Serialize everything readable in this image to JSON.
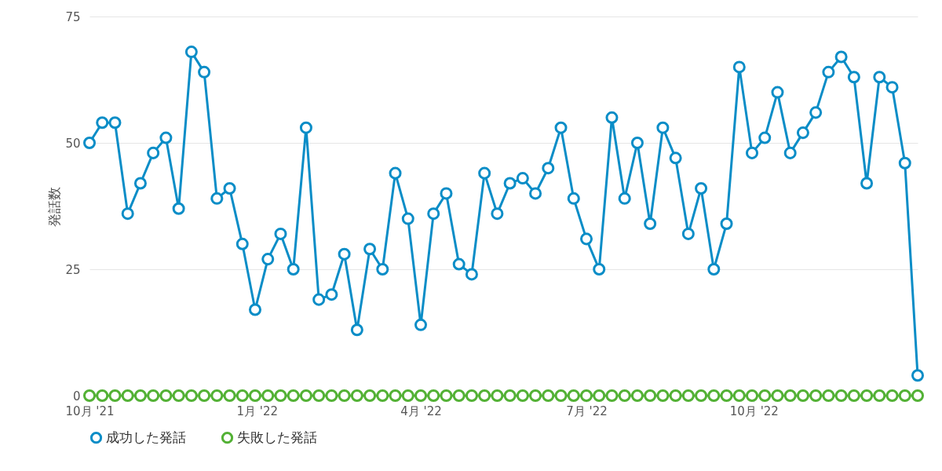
{
  "chart_data": {
    "type": "line",
    "ylabel": "発話数",
    "x": [
      "2021-10-01",
      "2021-10-08",
      "2021-10-15",
      "2021-10-22",
      "2021-10-29",
      "2021-11-05",
      "2021-11-12",
      "2021-11-19",
      "2021-11-26",
      "2021-12-03",
      "2021-12-10",
      "2021-12-17",
      "2021-12-24",
      "2021-12-31",
      "2022-01-07",
      "2022-01-14",
      "2022-01-21",
      "2022-01-28",
      "2022-02-04",
      "2022-02-11",
      "2022-02-18",
      "2022-02-25",
      "2022-03-04",
      "2022-03-11",
      "2022-03-18",
      "2022-03-25",
      "2022-04-01",
      "2022-04-08",
      "2022-04-15",
      "2022-04-22",
      "2022-04-29",
      "2022-05-06",
      "2022-05-13",
      "2022-05-20",
      "2022-05-27",
      "2022-06-03",
      "2022-06-10",
      "2022-06-17",
      "2022-06-24",
      "2022-07-01",
      "2022-07-08",
      "2022-07-15",
      "2022-07-22",
      "2022-07-29",
      "2022-08-05",
      "2022-08-12",
      "2022-08-19",
      "2022-08-26",
      "2022-09-02",
      "2022-09-09",
      "2022-09-16",
      "2022-09-23",
      "2022-09-30",
      "2022-10-07",
      "2022-10-14",
      "2022-10-21",
      "2022-10-28",
      "2022-11-04",
      "2022-11-11",
      "2022-11-18",
      "2022-11-25",
      "2022-12-02",
      "2022-12-09",
      "2022-12-16",
      "2022-12-23",
      "2022-12-30"
    ],
    "series": [
      {
        "name": "成功した発話",
        "color": "#0a8dc7",
        "values": [
          50,
          54,
          54,
          36,
          42,
          48,
          51,
          37,
          68,
          64,
          39,
          41,
          30,
          17,
          27,
          32,
          25,
          53,
          19,
          20,
          28,
          13,
          29,
          25,
          44,
          35,
          14,
          36,
          40,
          26,
          24,
          44,
          36,
          42,
          43,
          40,
          45,
          53,
          39,
          31,
          25,
          55,
          39,
          50,
          34,
          53,
          47,
          32,
          41,
          25,
          34,
          65,
          48,
          51,
          60,
          48,
          52,
          56,
          64,
          67,
          63,
          42,
          63,
          61,
          46,
          4
        ]
      },
      {
        "name": "失敗した発話",
        "color": "#53b135",
        "values": [
          0,
          0,
          0,
          0,
          0,
          0,
          0,
          0,
          0,
          0,
          0,
          0,
          0,
          0,
          0,
          0,
          0,
          0,
          0,
          0,
          0,
          0,
          0,
          0,
          0,
          0,
          0,
          0,
          0,
          0,
          0,
          0,
          0,
          0,
          0,
          0,
          0,
          0,
          0,
          0,
          0,
          0,
          0,
          0,
          0,
          0,
          0,
          0,
          0,
          0,
          0,
          0,
          0,
          0,
          0,
          0,
          0,
          0,
          0,
          0,
          0,
          0,
          0,
          0,
          0,
          0
        ]
      }
    ],
    "xlim": [
      "2021-10-01",
      "2022-12-30"
    ],
    "xticks": [
      {
        "value": "2021-10-01",
        "label": "10月 '21"
      },
      {
        "value": "2022-01-01",
        "label": "1月 '22"
      },
      {
        "value": "2022-04-01",
        "label": "4月 '22"
      },
      {
        "value": "2022-07-01",
        "label": "7月 '22"
      },
      {
        "value": "2022-10-01",
        "label": "10月 '22"
      }
    ],
    "ylim": [
      0,
      75
    ],
    "yticks": [
      0,
      25,
      50,
      75
    ],
    "grid": "y",
    "legend": "bottom",
    "marker": "circle",
    "line_style": "solid"
  }
}
